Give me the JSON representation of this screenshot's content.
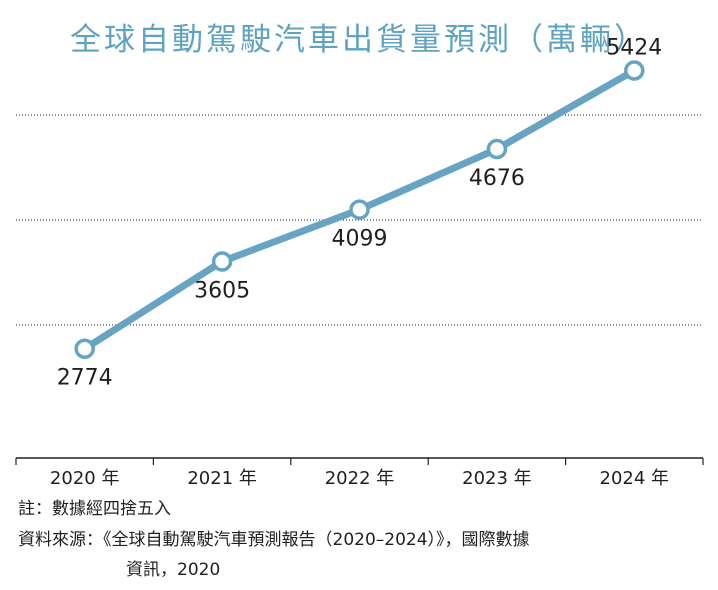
{
  "chart_data": {
    "type": "line",
    "title": "全球自動駕駛汽車出貨量預測（萬輛）",
    "categories": [
      "2020 年",
      "2021 年",
      "2022 年",
      "2023 年",
      "2024 年"
    ],
    "series": [
      {
        "values": [
          2774,
          3605,
          4099,
          4676,
          5424
        ]
      }
    ],
    "data_labels": [
      "2774",
      "3605",
      "4099",
      "4676",
      "5424"
    ],
    "ylim": [
      2000,
      6000
    ],
    "gridlines": [
      3000,
      4000,
      5000
    ],
    "grid": "horizontal dotted",
    "line_color": "#67a3c3",
    "marker_fill": "#ffffff",
    "title_color": "#5fa3c0"
  },
  "notes": {
    "note": "註：數據經四捨五入",
    "source_line1": "資料來源：《全球自動駕駛汽車預測報告（2020–2024）》，國際數據",
    "source_line2": "資訊，2020"
  }
}
